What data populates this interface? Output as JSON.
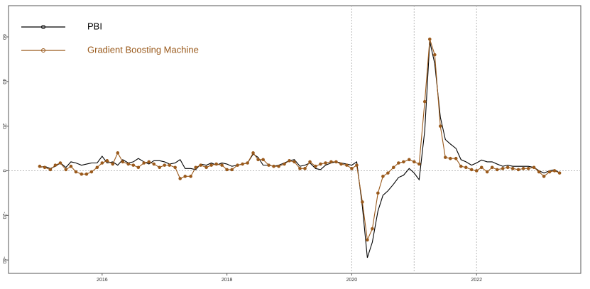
{
  "chart_data": {
    "type": "line",
    "x": [
      2015.0,
      2015.08,
      2015.17,
      2015.25,
      2015.33,
      2015.42,
      2015.5,
      2015.58,
      2015.67,
      2015.75,
      2015.83,
      2015.92,
      2016.0,
      2016.08,
      2016.17,
      2016.25,
      2016.33,
      2016.42,
      2016.5,
      2016.58,
      2016.67,
      2016.75,
      2016.83,
      2016.92,
      2017.0,
      2017.08,
      2017.17,
      2017.25,
      2017.33,
      2017.42,
      2017.5,
      2017.58,
      2017.67,
      2017.75,
      2017.83,
      2017.92,
      2018.0,
      2018.08,
      2018.17,
      2018.25,
      2018.33,
      2018.42,
      2018.5,
      2018.58,
      2018.67,
      2018.75,
      2018.83,
      2018.92,
      2019.0,
      2019.08,
      2019.17,
      2019.25,
      2019.33,
      2019.42,
      2019.5,
      2019.58,
      2019.67,
      2019.75,
      2019.83,
      2019.92,
      2020.0,
      2020.08,
      2020.17,
      2020.25,
      2020.33,
      2020.42,
      2020.5,
      2020.58,
      2020.67,
      2020.75,
      2020.83,
      2020.92,
      2021.0,
      2021.08,
      2021.17,
      2021.25,
      2021.33,
      2021.42,
      2021.5,
      2021.58,
      2021.67,
      2021.75,
      2021.83,
      2021.92,
      2022.0,
      2022.08,
      2022.17,
      2022.25,
      2022.33,
      2022.42,
      2022.5,
      2022.58,
      2022.67,
      2022.75,
      2022.83,
      2022.92,
      2023.0,
      2023.08,
      2023.17,
      2023.25,
      2023.33
    ],
    "series": [
      {
        "name": "PBI",
        "color": "#000000",
        "marker": false,
        "values": [
          1.5,
          2,
          1,
          2,
          3.5,
          1.5,
          4,
          3.5,
          2.5,
          3,
          3.5,
          3.5,
          6.5,
          3.5,
          4,
          2.5,
          5,
          3.5,
          4,
          5.5,
          4,
          3,
          4.5,
          4.5,
          4,
          3,
          3.5,
          5,
          1,
          1,
          0.5,
          3,
          2.5,
          3.5,
          2.5,
          3.5,
          3,
          2,
          2.5,
          3,
          3.5,
          7.5,
          6,
          2.5,
          2.5,
          2,
          2.5,
          3.5,
          4.5,
          5,
          2,
          2.5,
          3.5,
          1,
          0.5,
          2.5,
          3.5,
          4,
          3.5,
          3,
          2.5,
          4,
          -16,
          -39,
          -32,
          -18,
          -11,
          -9,
          -6,
          -3,
          -2,
          1,
          -1,
          -4,
          18,
          58,
          48,
          24,
          14,
          12,
          10,
          5,
          4,
          2.5,
          3.5,
          4.8,
          4,
          4,
          3,
          2,
          2.5,
          2,
          2,
          2,
          2,
          1.5,
          0,
          -1,
          0,
          0.5,
          -1
        ]
      },
      {
        "name": "Gradient Boosting Machine",
        "color": "#9a5a1c",
        "marker": true,
        "values": [
          2,
          1.5,
          0.5,
          2.5,
          3.5,
          0.5,
          2,
          -0.5,
          -1.5,
          -1.5,
          -0.5,
          1.5,
          3.5,
          4.5,
          3,
          8,
          4,
          3,
          2.5,
          1.5,
          3.5,
          4,
          3,
          1.5,
          2.5,
          2.5,
          1.5,
          -3.5,
          -2.5,
          -2.5,
          1.5,
          2.5,
          1.5,
          2.5,
          3,
          2.5,
          0.5,
          0.5,
          2.5,
          3,
          3.5,
          8,
          5,
          5,
          2.5,
          2,
          2,
          3,
          4.5,
          4,
          1,
          1,
          4,
          2,
          3,
          3.5,
          4,
          4,
          3,
          2.5,
          1,
          2.5,
          -14,
          -31,
          -26,
          -10,
          -2.5,
          -1,
          1.5,
          3.5,
          4,
          5,
          4,
          3,
          31,
          59,
          52,
          20,
          6,
          5.5,
          5.5,
          2,
          1.5,
          0.5,
          0,
          1.5,
          -0.5,
          1.5,
          0.5,
          1,
          1.5,
          1,
          0.5,
          1,
          1,
          1.5,
          -0.5,
          -2.5,
          -0.5,
          0,
          -1
        ]
      }
    ],
    "xlim": [
      2014.5,
      2023.67
    ],
    "xticks": [
      2016,
      2018,
      2020,
      2022
    ],
    "ylim": [
      -46,
      74
    ],
    "yticks": [
      -40,
      -20,
      0,
      20,
      40,
      60
    ],
    "vgrid": [
      2020,
      2021,
      2022
    ],
    "hline": 0,
    "legend": "top-left"
  }
}
